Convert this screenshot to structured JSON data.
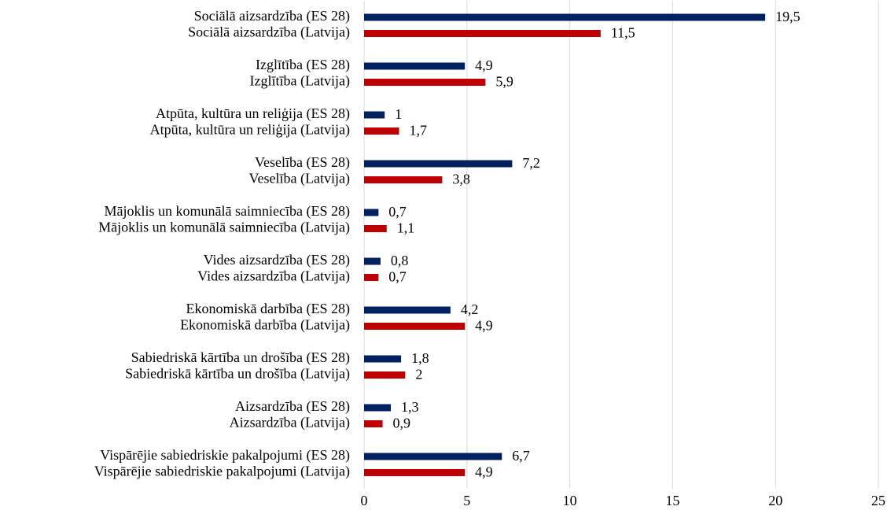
{
  "chart_data": {
    "type": "barh",
    "categories": [
      "Sociālā aizsardzība (ES 28)",
      "Sociālā aizsardzība (Latvija)",
      "Izglītība (ES 28)",
      "Izglītība (Latvija)",
      "Atpūta, kultūra un reliģija (ES 28)",
      "Atpūta, kultūra un reliģija (Latvija)",
      "Veselība (ES 28)",
      "Veselība (Latvija)",
      "Mājoklis un komunālā saimniecība (ES 28)",
      "Mājoklis un komunālā saimniecība (Latvija)",
      "Vides aizsardzība (ES 28)",
      "Vides aizsardzība (Latvija)",
      "Ekonomiskā darbība (ES 28)",
      "Ekonomiskā darbība (Latvija)",
      "Sabiedriskā kārtība un drošība (ES 28)",
      "Sabiedriskā kārtība un drošība (Latvija)",
      "Aizsardzība (ES 28)",
      "Aizsardzība (Latvija)",
      "Vispārējie sabiedriskie pakalpojumi (ES 28)",
      "Vispārējie sabiedriskie pakalpojumi (Latvija)"
    ],
    "values": [
      19.5,
      11.5,
      4.9,
      5.9,
      1,
      1.7,
      7.2,
      3.8,
      0.7,
      1.1,
      0.8,
      0.7,
      4.2,
      4.9,
      1.8,
      2,
      1.3,
      0.9,
      6.7,
      4.9
    ],
    "value_labels": [
      "19,5",
      "11,5",
      "4,9",
      "5,9",
      "1",
      "1,7",
      "7,2",
      "3,8",
      "0,7",
      "1,1",
      "0,8",
      "0,7",
      "4,2",
      "4,9",
      "1,8",
      "2",
      "1,3",
      "0,9",
      "6,7",
      "4,9"
    ],
    "colors": [
      "#002060",
      "#c00000",
      "#002060",
      "#c00000",
      "#002060",
      "#c00000",
      "#002060",
      "#c00000",
      "#002060",
      "#c00000",
      "#002060",
      "#c00000",
      "#002060",
      "#c00000",
      "#002060",
      "#c00000",
      "#002060",
      "#c00000",
      "#002060",
      "#c00000"
    ],
    "xlim": [
      0,
      25
    ],
    "xticks": [
      0,
      5,
      10,
      15,
      20,
      25
    ],
    "grid": true
  }
}
